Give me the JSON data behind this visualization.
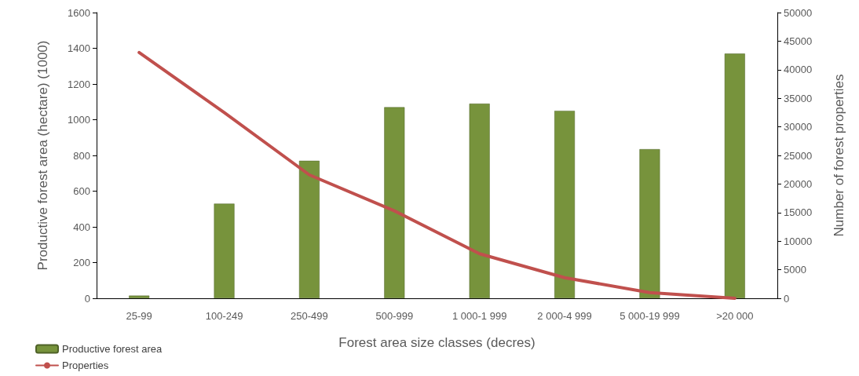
{
  "chart_data": {
    "type": "bar",
    "xlabel": "Forest area size classes (decres)",
    "ylabel": "Productive forest area (hectare) (1000)",
    "y2label": "Number of forest properties",
    "categories": [
      "25-99",
      "100-249",
      "250-499",
      "500-999",
      "1 000-1 999",
      "2 000-4 999",
      "5 000-19 999",
      ">20 000"
    ],
    "series": [
      {
        "name": "Productive forest area",
        "color": "#77933c",
        "values": [
          15,
          530,
          770,
          1070,
          1090,
          1050,
          835,
          1370
        ]
      },
      {
        "name": "Properties",
        "type": "line",
        "axis": "y2",
        "color": "#c0504d",
        "values": [
          43000,
          32500,
          21600,
          15300,
          7800,
          3600,
          1000,
          0
        ]
      }
    ],
    "ylim": [
      0,
      1600
    ],
    "yticks": [
      0,
      200,
      400,
      600,
      800,
      1000,
      1200,
      1400,
      1600
    ],
    "y2lim": [
      0,
      50000
    ],
    "y2ticks": [
      0,
      5000,
      10000,
      15000,
      20000,
      25000,
      30000,
      35000,
      40000,
      45000,
      50000
    ],
    "grid": false,
    "legend": "bottom left",
    "marker": "none",
    "line_style": "solid"
  }
}
